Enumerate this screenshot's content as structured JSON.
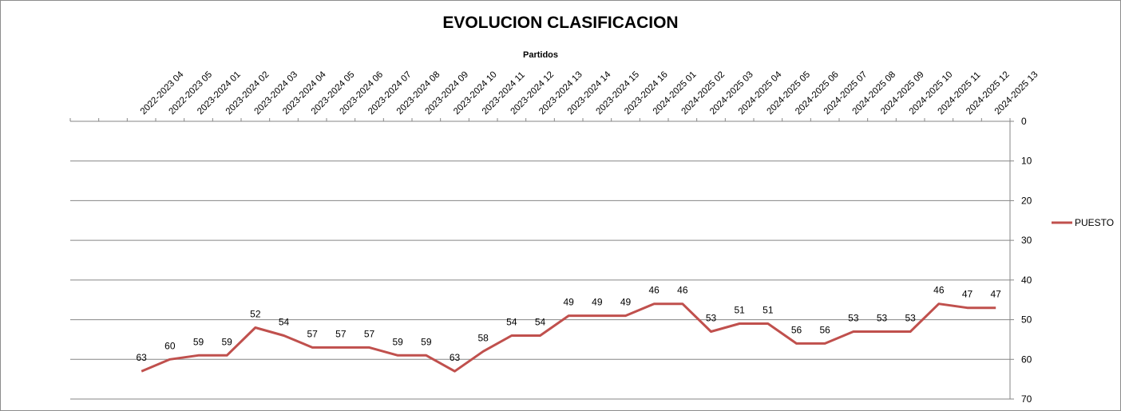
{
  "chart_data": {
    "type": "line",
    "title": "EVOLUCION CLASIFICACION",
    "xlabel": "Partidos",
    "ylabel": "",
    "x_axis_position": "top",
    "y_axis_position": "right",
    "y_reversed": true,
    "ylim": [
      0,
      70
    ],
    "y_ticks": [
      0,
      10,
      20,
      30,
      40,
      50,
      60,
      70
    ],
    "grid": true,
    "legend_position": "right",
    "categories": [
      "2022-2023 04",
      "2022-2023 05",
      "2023-2024 01",
      "2023-2024 02",
      "2023-2024 03",
      "2023-2024 04",
      "2023-2024 05",
      "2023-2024 06",
      "2023-2024 07",
      "2023-2024 08",
      "2023-2024 09",
      "2023-2024 10",
      "2023-2024 11",
      "2023-2024 12",
      "2023-2024 13",
      "2023-2024 14",
      "2023-2024 15",
      "2023-2024 16",
      "2024-2025 01",
      "2024-2025 02",
      "2024-2025 03",
      "2024-2025 04",
      "2024-2025 05",
      "2024-2025 06",
      "2024-2025 07",
      "2024-2025 08",
      "2024-2025 09",
      "2024-2025 10",
      "2024-2025 11",
      "2024-2025 12",
      "2024-2025 13"
    ],
    "series": [
      {
        "name": "PUESTO",
        "color": "#c0504d",
        "values": [
          63,
          60,
          59,
          59,
          52,
          54,
          57,
          57,
          57,
          59,
          59,
          63,
          58,
          54,
          54,
          49,
          49,
          49,
          46,
          46,
          53,
          51,
          51,
          56,
          56,
          53,
          53,
          53,
          46,
          47,
          47
        ]
      }
    ],
    "gridline_color": "#868686",
    "axis_color": "#868686"
  }
}
